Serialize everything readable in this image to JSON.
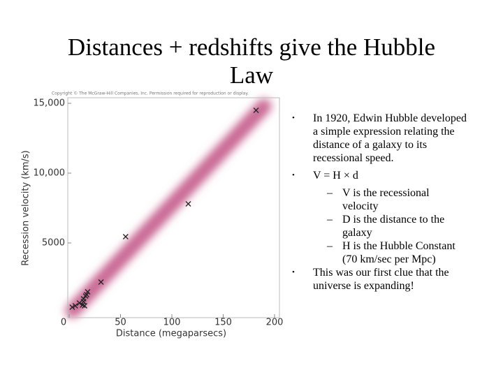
{
  "title": "Distances + redshifts give the Hubble Law",
  "copyright": "Copyright © The McGraw-Hill Companies, Inc. Permission required for reproduction or display.",
  "bullets": [
    {
      "text": "In 1920, Edwin Hubble developed a simple expression relating the distance of a galaxy to its recessional speed."
    },
    {
      "text": "V = H × d",
      "sub": [
        "V is the recessional velocity",
        "D is the distance to the galaxy",
        "H is the Hubble Constant (70 km/sec per Mpc)"
      ]
    },
    {
      "text": "This was our first clue that the universe is expanding!"
    }
  ],
  "chart_data": {
    "type": "scatter",
    "xlabel": "Distance (megaparsecs)",
    "ylabel": "Recession velocity (km/s)",
    "x": [
      182,
      116,
      55,
      31,
      3,
      6,
      10,
      13,
      14,
      16,
      18,
      17,
      14,
      15
    ],
    "values": [
      14500,
      7800,
      5450,
      2200,
      400,
      500,
      700,
      550,
      1000,
      1200,
      1500,
      1300,
      800,
      500
    ],
    "color": "#222222",
    "xlim": [
      0,
      200
    ],
    "ylim": [
      0,
      15000
    ],
    "xticks": [
      0,
      50,
      100,
      150,
      200
    ],
    "yticks": [
      5000,
      {
        "value": 10000,
        "label": "10,000"
      },
      {
        "value": 15000,
        "label": "15,000"
      }
    ]
  }
}
